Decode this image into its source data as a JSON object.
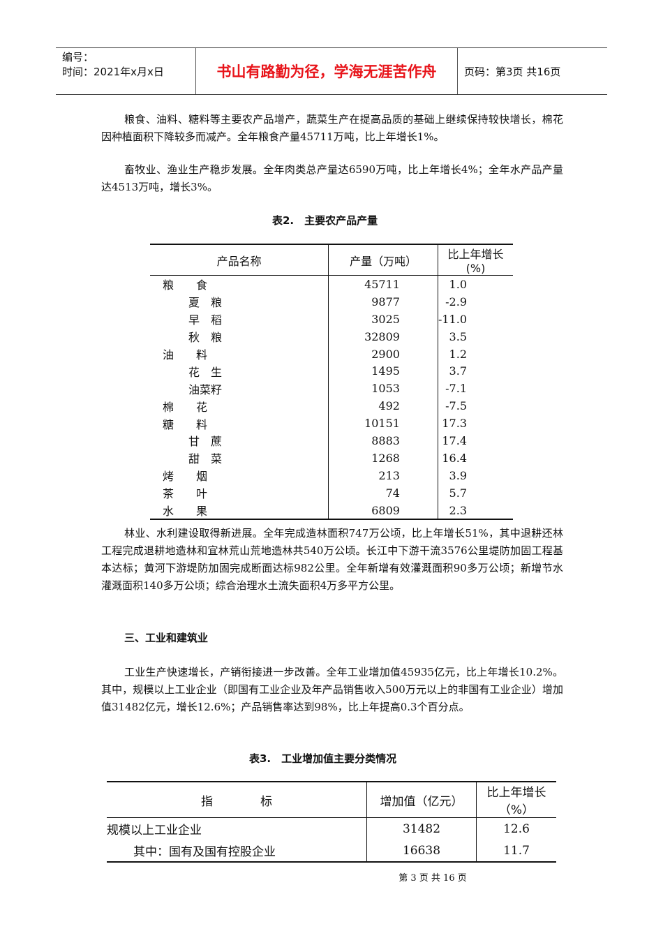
{
  "header": {
    "number_label": "编号：",
    "date_label": "时间：2021年x月x日",
    "motto": "书山有路勤为径，学海无涯苦作舟",
    "page_label": "页码：第3页  共16页"
  },
  "paragraphs": {
    "p1": "粮食、油料、糖料等主要农产品增产，蔬菜生产在提高品质的基础上继续保持较快增长，棉花因种植面积下降较多而减产。全年粮食产量45711万吨，比上年增长1%。",
    "p2": "畜牧业、渔业生产稳步发展。全年肉类总产量达6590万吨，比上年增长4%；全年水产品产量达4513万吨，增长3%。",
    "p3": "林业、水利建设取得新进展。全年完成造林面积747万公顷，比上年增长51%，其中退耕还林工程完成退耕地造林和宜林荒山荒地造林共540万公顷。长江中下游干流3576公里堤防加固工程基本达标；黄河下游堤防加固完成断面达标982公里。全年新增有效灌溉面积90多万公顷；新增节水灌溉面积140多万公顷；综合治理水土流失面积4万多平方公里。",
    "section3": "三、工业和建筑业",
    "p4": "工业生产快速增长，产销衔接进一步改善。全年工业增加值45935亿元，比上年增长10.2%。其中，规模以上工业企业（即国有工业企业及年产品销售收入500万元以上的非国有工业企业）增加值31482亿元，增长12.6%；产品销售率达到98%，比上年提高0.3个百分点。"
  },
  "table2": {
    "caption": "表2.　主要农产品产量",
    "headers": [
      "产品名称",
      "产量（万吨）",
      "比上年增长(%)"
    ],
    "rows": [
      {
        "name": "粮　　食",
        "level": 0,
        "output": "45711",
        "growth": "1.0"
      },
      {
        "name": "夏　粮",
        "level": 1,
        "output": "9877",
        "growth": "-2.9"
      },
      {
        "name": "早　稻",
        "level": 1,
        "output": "3025",
        "growth": "-11.0"
      },
      {
        "name": "秋　粮",
        "level": 1,
        "output": "32809",
        "growth": "3.5"
      },
      {
        "name": "油　　料",
        "level": 0,
        "output": "2900",
        "growth": "1.2"
      },
      {
        "name": "花　生",
        "level": 1,
        "output": "1495",
        "growth": "3.7"
      },
      {
        "name": "油菜籽",
        "level": 1,
        "output": "1053",
        "growth": "-7.1"
      },
      {
        "name": "棉　　花",
        "level": 0,
        "output": "492",
        "growth": "-7.5"
      },
      {
        "name": "糖　　料",
        "level": 0,
        "output": "10151",
        "growth": "17.3"
      },
      {
        "name": "甘　蔗",
        "level": 1,
        "output": "8883",
        "growth": "17.4"
      },
      {
        "name": "甜　菜",
        "level": 1,
        "output": "1268",
        "growth": "16.4"
      },
      {
        "name": "烤　　烟",
        "level": 0,
        "output": "213",
        "growth": "3.9"
      },
      {
        "name": "茶　　叶",
        "level": 0,
        "output": "74",
        "growth": "5.7"
      },
      {
        "name": "水　　果",
        "level": 0,
        "output": "6809",
        "growth": "2.3"
      }
    ]
  },
  "table3": {
    "caption": "表3.　工业增加值主要分类情况",
    "headers": [
      "指　　　　标",
      "增加值（亿元）",
      "比上年增长（%）"
    ],
    "rows": [
      {
        "name": "规模以上工业企业",
        "level": 0,
        "value": "31482",
        "growth": "12.6"
      },
      {
        "name": "其中：国有及国有控股企业",
        "level": 1,
        "value": "16638",
        "growth": "11.7"
      }
    ]
  },
  "footer": "第 3 页 共 16 页"
}
